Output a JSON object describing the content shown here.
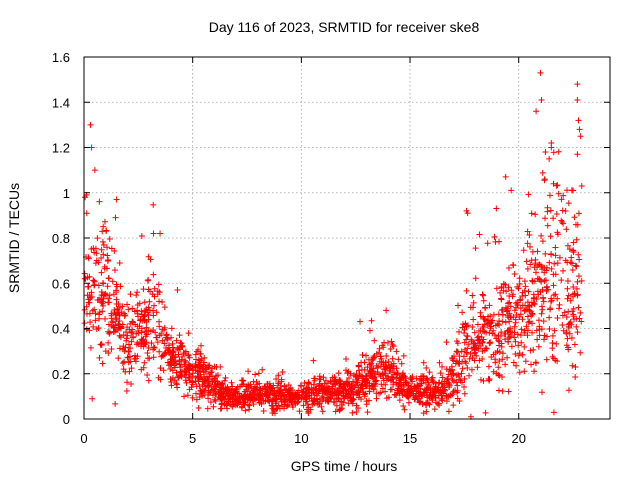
{
  "chart_data": {
    "type": "scatter",
    "title": "Day 116 of 2023, SRMTID for receiver ske8",
    "xlabel": "GPS time / hours",
    "ylabel": "SRMTID / TECUs",
    "xlim": [
      0,
      24.2
    ],
    "ylim": [
      0,
      1.6
    ],
    "xticks": [
      0,
      5,
      10,
      15,
      20
    ],
    "xtick_labels": [
      "0",
      "5",
      "10",
      "15",
      "20"
    ],
    "yticks": [
      0,
      0.2,
      0.4,
      0.6,
      0.8,
      1.0,
      1.2,
      1.4,
      1.6
    ],
    "ytick_labels": [
      "0",
      "0.2",
      "0.4",
      "0.6",
      "0.8",
      "1",
      "1.2",
      "1.4",
      "1.6"
    ],
    "grid": true,
    "marker": "+",
    "color": "#ff0000",
    "envelope": {
      "description": "approximate median and spread of the dense point cloud (hours, TECU)",
      "t": [
        0.0,
        0.5,
        1.0,
        1.5,
        2.0,
        2.5,
        3.0,
        3.5,
        4.0,
        4.5,
        5.0,
        5.5,
        6.0,
        6.5,
        7.0,
        7.5,
        8.0,
        8.5,
        9.0,
        9.5,
        10.0,
        10.5,
        11.0,
        11.5,
        12.0,
        12.5,
        13.0,
        13.5,
        14.0,
        14.5,
        15.0,
        15.5,
        16.0,
        16.5,
        17.0,
        17.5,
        18.0,
        18.5,
        19.0,
        19.5,
        20.0,
        20.5,
        21.0,
        21.5,
        22.0,
        22.5,
        22.9
      ],
      "median": [
        0.5,
        0.62,
        0.55,
        0.45,
        0.33,
        0.38,
        0.45,
        0.38,
        0.28,
        0.24,
        0.2,
        0.18,
        0.14,
        0.11,
        0.09,
        0.1,
        0.12,
        0.11,
        0.1,
        0.1,
        0.1,
        0.11,
        0.12,
        0.13,
        0.12,
        0.14,
        0.17,
        0.21,
        0.2,
        0.16,
        0.13,
        0.12,
        0.12,
        0.13,
        0.17,
        0.3,
        0.36,
        0.38,
        0.4,
        0.42,
        0.45,
        0.5,
        0.55,
        0.62,
        0.6,
        0.55,
        0.5
      ],
      "spread": [
        0.17,
        0.23,
        0.2,
        0.13,
        0.1,
        0.13,
        0.15,
        0.12,
        0.09,
        0.08,
        0.07,
        0.06,
        0.05,
        0.04,
        0.04,
        0.04,
        0.04,
        0.04,
        0.04,
        0.03,
        0.03,
        0.04,
        0.04,
        0.05,
        0.05,
        0.06,
        0.07,
        0.08,
        0.07,
        0.05,
        0.04,
        0.04,
        0.04,
        0.05,
        0.07,
        0.12,
        0.14,
        0.15,
        0.16,
        0.18,
        0.2,
        0.22,
        0.24,
        0.28,
        0.28,
        0.26,
        0.24
      ]
    },
    "notable_points": [
      {
        "x": 0.05,
        "y": 0.98
      },
      {
        "x": 0.3,
        "y": 1.3
      },
      {
        "x": 0.35,
        "y": 1.2
      },
      {
        "x": 0.5,
        "y": 1.1
      },
      {
        "x": 1.5,
        "y": 0.97
      },
      {
        "x": 1.45,
        "y": 0.89
      },
      {
        "x": 3.2,
        "y": 0.82
      },
      {
        "x": 3.5,
        "y": 0.82
      },
      {
        "x": 4.3,
        "y": 0.57
      },
      {
        "x": 13.9,
        "y": 0.48
      },
      {
        "x": 17.6,
        "y": 0.92
      },
      {
        "x": 17.65,
        "y": 0.91
      },
      {
        "x": 17.8,
        "y": 0.01
      },
      {
        "x": 19.4,
        "y": 1.07
      },
      {
        "x": 20.8,
        "y": 1.36
      },
      {
        "x": 21.0,
        "y": 1.53
      },
      {
        "x": 21.05,
        "y": 1.41
      },
      {
        "x": 21.2,
        "y": 1.06
      },
      {
        "x": 21.4,
        "y": 1.15
      },
      {
        "x": 21.5,
        "y": 1.2
      },
      {
        "x": 21.5,
        "y": 1.22
      },
      {
        "x": 21.6,
        "y": 1.04
      },
      {
        "x": 22.5,
        "y": 1.01
      },
      {
        "x": 22.7,
        "y": 1.48
      },
      {
        "x": 22.7,
        "y": 1.41
      },
      {
        "x": 22.75,
        "y": 1.32
      },
      {
        "x": 22.8,
        "y": 1.28
      },
      {
        "x": 22.85,
        "y": 1.25
      },
      {
        "x": 22.7,
        "y": 1.17
      },
      {
        "x": 22.9,
        "y": 1.03
      }
    ],
    "point_count": 2200,
    "seed": 116
  }
}
